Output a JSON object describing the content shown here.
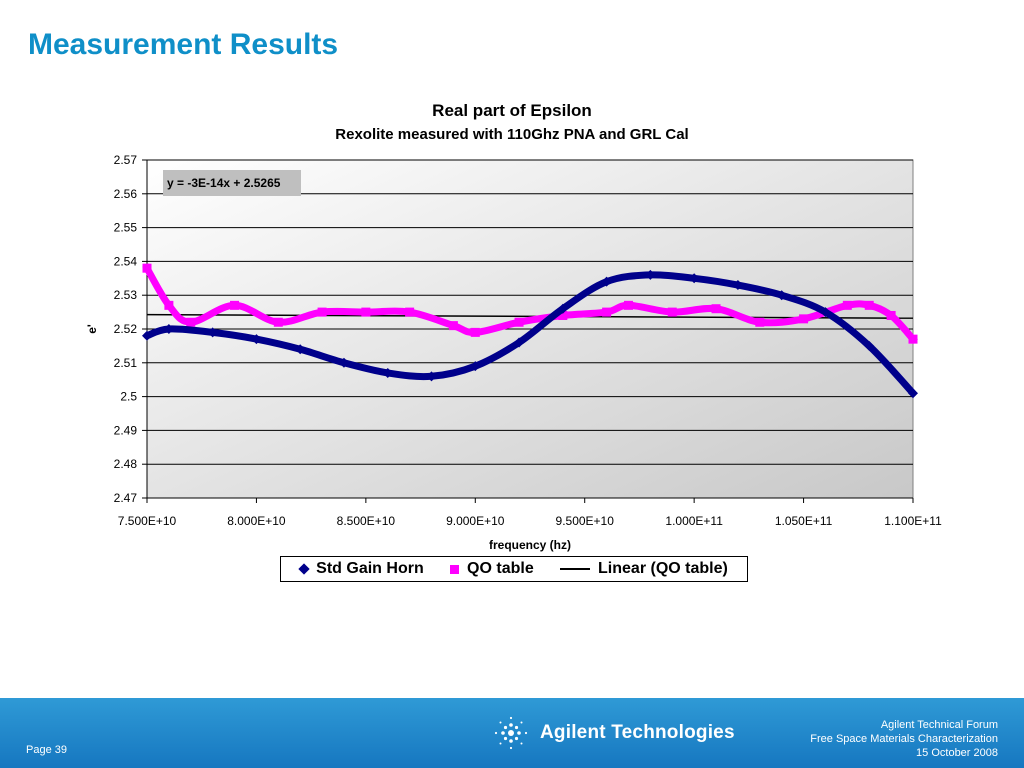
{
  "slide_title": "Measurement Results",
  "footer": {
    "page": "Page 39",
    "logo_text": "Agilent Technologies",
    "info_line1": "Agilent Technical Forum",
    "info_line2": "Free Space Materials Characterization",
    "info_line3": "15 October 2008"
  },
  "chart_data": {
    "type": "scatter",
    "title": "Real part of Epsilon",
    "subtitle": "Rexolite measured with 110Ghz PNA and GRL Cal",
    "xlabel": "frequency (hz)",
    "ylabel": "e'",
    "xlim": [
      75000000000.0,
      110000000000.0
    ],
    "ylim": [
      2.47,
      2.57
    ],
    "x_ticks": [
      75000000000.0,
      80000000000.0,
      85000000000.0,
      90000000000.0,
      95000000000.0,
      100000000000.0,
      105000000000.0,
      110000000000.0
    ],
    "x_tick_labels": [
      "7.500E+10",
      "8.000E+10",
      "8.500E+10",
      "9.000E+10",
      "9.500E+10",
      "1.000E+11",
      "1.050E+11",
      "1.100E+11"
    ],
    "y_ticks": [
      2.47,
      2.48,
      2.49,
      2.5,
      2.51,
      2.52,
      2.53,
      2.54,
      2.55,
      2.56,
      2.57
    ],
    "y_tick_labels": [
      "2.47",
      "2.48",
      "2.49",
      "2.5",
      "2.51",
      "2.52",
      "2.53",
      "2.54",
      "2.55",
      "2.56",
      "2.57"
    ],
    "grid": "horizontal",
    "legend_position": "bottom",
    "annotation": "y = -3E-14x + 2.5265",
    "series": [
      {
        "name": "Std Gain Horn",
        "marker": "diamond",
        "color": "#00008b",
        "x": [
          75000000000.0,
          76000000000.0,
          78000000000.0,
          80000000000.0,
          82000000000.0,
          84000000000.0,
          86000000000.0,
          88000000000.0,
          90000000000.0,
          92000000000.0,
          94000000000.0,
          96000000000.0,
          98000000000.0,
          100000000000.0,
          102000000000.0,
          104000000000.0,
          106000000000.0,
          108000000000.0,
          110000000000.0
        ],
        "y": [
          2.518,
          2.52,
          2.519,
          2.517,
          2.514,
          2.51,
          2.507,
          2.506,
          2.509,
          2.516,
          2.526,
          2.534,
          2.536,
          2.535,
          2.533,
          2.53,
          2.525,
          2.515,
          2.501
        ]
      },
      {
        "name": "QO table",
        "marker": "square",
        "color": "#ff00ff",
        "x": [
          75000000000.0,
          76000000000.0,
          77000000000.0,
          79000000000.0,
          81000000000.0,
          83000000000.0,
          85000000000.0,
          87000000000.0,
          89000000000.0,
          90000000000.0,
          92000000000.0,
          94000000000.0,
          96000000000.0,
          97000000000.0,
          99000000000.0,
          101000000000.0,
          103000000000.0,
          105000000000.0,
          107000000000.0,
          108000000000.0,
          109000000000.0,
          110000000000.0
        ],
        "y": [
          2.538,
          2.527,
          2.522,
          2.527,
          2.522,
          2.525,
          2.525,
          2.525,
          2.521,
          2.519,
          2.522,
          2.524,
          2.525,
          2.527,
          2.525,
          2.526,
          2.522,
          2.523,
          2.527,
          2.527,
          2.524,
          2.517
        ]
      },
      {
        "name": "Linear (QO table)",
        "marker": "none",
        "color": "#000000",
        "x": [
          75000000000.0,
          110000000000.0
        ],
        "y": [
          2.52425,
          2.5232
        ]
      }
    ]
  }
}
